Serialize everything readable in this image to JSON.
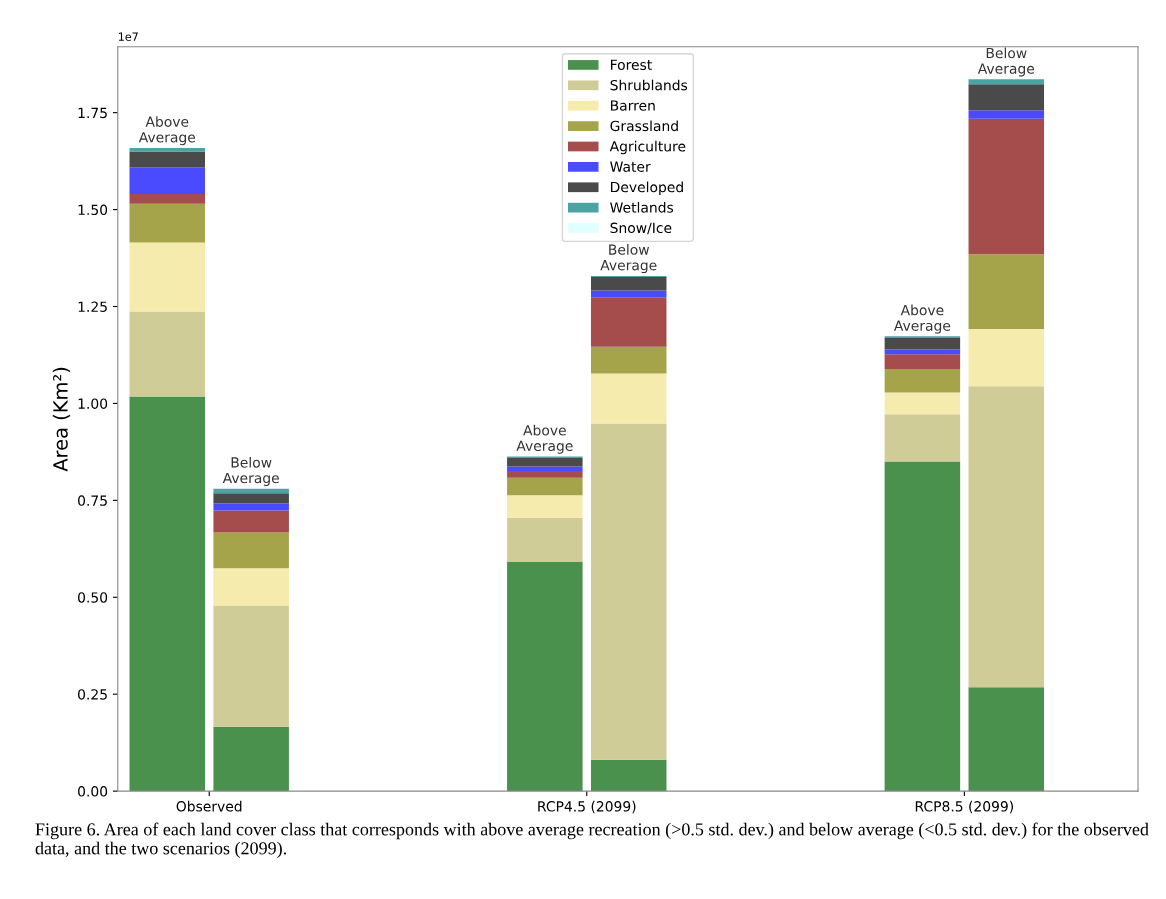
{
  "chart_data": {
    "type": "bar",
    "stacked": true,
    "ylabel": "Area (Km²)",
    "categories": [
      null,
      "Observed",
      null,
      null,
      null,
      null,
      null,
      null,
      null,
      null,
      "RCP4.5 (2099)",
      null,
      null,
      null,
      null,
      null,
      null,
      null,
      null,
      "RCP8.5 (2099)",
      null
    ],
    "ylim": [
      0,
      1.92
    ],
    "yticks": [
      {
        "value": 0,
        "label": "0.00"
      },
      {
        "value": 0.25,
        "label": "0.25"
      },
      {
        "value": 0.5,
        "label": "0.50"
      },
      {
        "value": 0.75,
        "label": "0.75"
      },
      {
        "value": 1.0,
        "label": "1.00"
      },
      {
        "value": 1.25,
        "label": "1.25"
      },
      {
        "value": 1.5,
        "label": "1.50"
      },
      {
        "value": 1.75,
        "label": "1.75"
      }
    ],
    "series": [
      {
        "name": "Forest",
        "color": "#4b914e",
        "values": [
          1.018,
          null,
          0.166,
          null,
          null,
          null,
          null,
          null,
          null,
          0.591,
          null,
          0.081,
          null,
          null,
          null,
          null,
          null,
          null,
          0.85,
          null,
          0.268
        ]
      },
      {
        "name": "Shrublands",
        "color": "#d0cc98",
        "values": [
          0.219,
          null,
          0.313,
          null,
          null,
          null,
          null,
          null,
          null,
          0.114,
          null,
          0.867,
          null,
          null,
          null,
          null,
          null,
          null,
          0.122,
          null,
          0.776
        ]
      },
      {
        "name": "Barren",
        "color": "#f4ebad",
        "values": [
          0.178,
          null,
          0.096,
          null,
          null,
          null,
          null,
          null,
          null,
          0.058,
          null,
          0.129,
          null,
          null,
          null,
          null,
          null,
          null,
          0.056,
          null,
          0.148
        ]
      },
      {
        "name": "Grassland",
        "color": "#a5a44b",
        "values": [
          0.1,
          null,
          0.092,
          null,
          null,
          null,
          null,
          null,
          null,
          0.045,
          null,
          0.069,
          null,
          null,
          null,
          null,
          null,
          null,
          0.061,
          null,
          0.193
        ]
      },
      {
        "name": "Agriculture",
        "color": "#a54c4c",
        "values": [
          0.025,
          null,
          0.057,
          null,
          null,
          null,
          null,
          null,
          null,
          0.018,
          null,
          0.128,
          null,
          null,
          null,
          null,
          null,
          null,
          0.038,
          null,
          0.349
        ]
      },
      {
        "name": "Water",
        "color": "#4a4aff",
        "values": [
          0.069,
          null,
          0.018,
          null,
          null,
          null,
          null,
          null,
          null,
          0.011,
          null,
          0.017,
          null,
          null,
          null,
          null,
          null,
          null,
          0.012,
          null,
          0.022
        ]
      },
      {
        "name": "Developed",
        "color": "#4a4a4a",
        "values": [
          0.041,
          null,
          0.026,
          null,
          null,
          null,
          null,
          null,
          null,
          0.022,
          null,
          0.035,
          null,
          null,
          null,
          null,
          null,
          null,
          0.03,
          null,
          0.067
        ]
      },
      {
        "name": "Wetlands",
        "color": "#4ba3a3",
        "values": [
          0.009,
          null,
          0.012,
          null,
          null,
          null,
          null,
          null,
          null,
          0.004,
          null,
          0.003,
          null,
          null,
          null,
          null,
          null,
          null,
          0.004,
          null,
          0.013
        ]
      },
      {
        "name": "Snow/Ice",
        "color": "#e0ffff",
        "values": [
          0,
          null,
          0,
          null,
          null,
          null,
          null,
          null,
          null,
          0,
          null,
          0,
          null,
          null,
          null,
          null,
          null,
          null,
          0,
          null,
          0
        ]
      }
    ],
    "legend": "top",
    "grid": false,
    "annotations": [
      "1e7",
      "Above\nAverage",
      "Below\nAverage",
      "Above\nAverage",
      "Below\nAverage",
      "Above\nAverage",
      "Below\nAverage",
      "Figure 6. Area of each land cover class that corresponds with above average recreation (>0.5 std. dev.) and below average (<0.5 std. dev.) for the observed data, and the two scenarios (2099)."
    ]
  }
}
